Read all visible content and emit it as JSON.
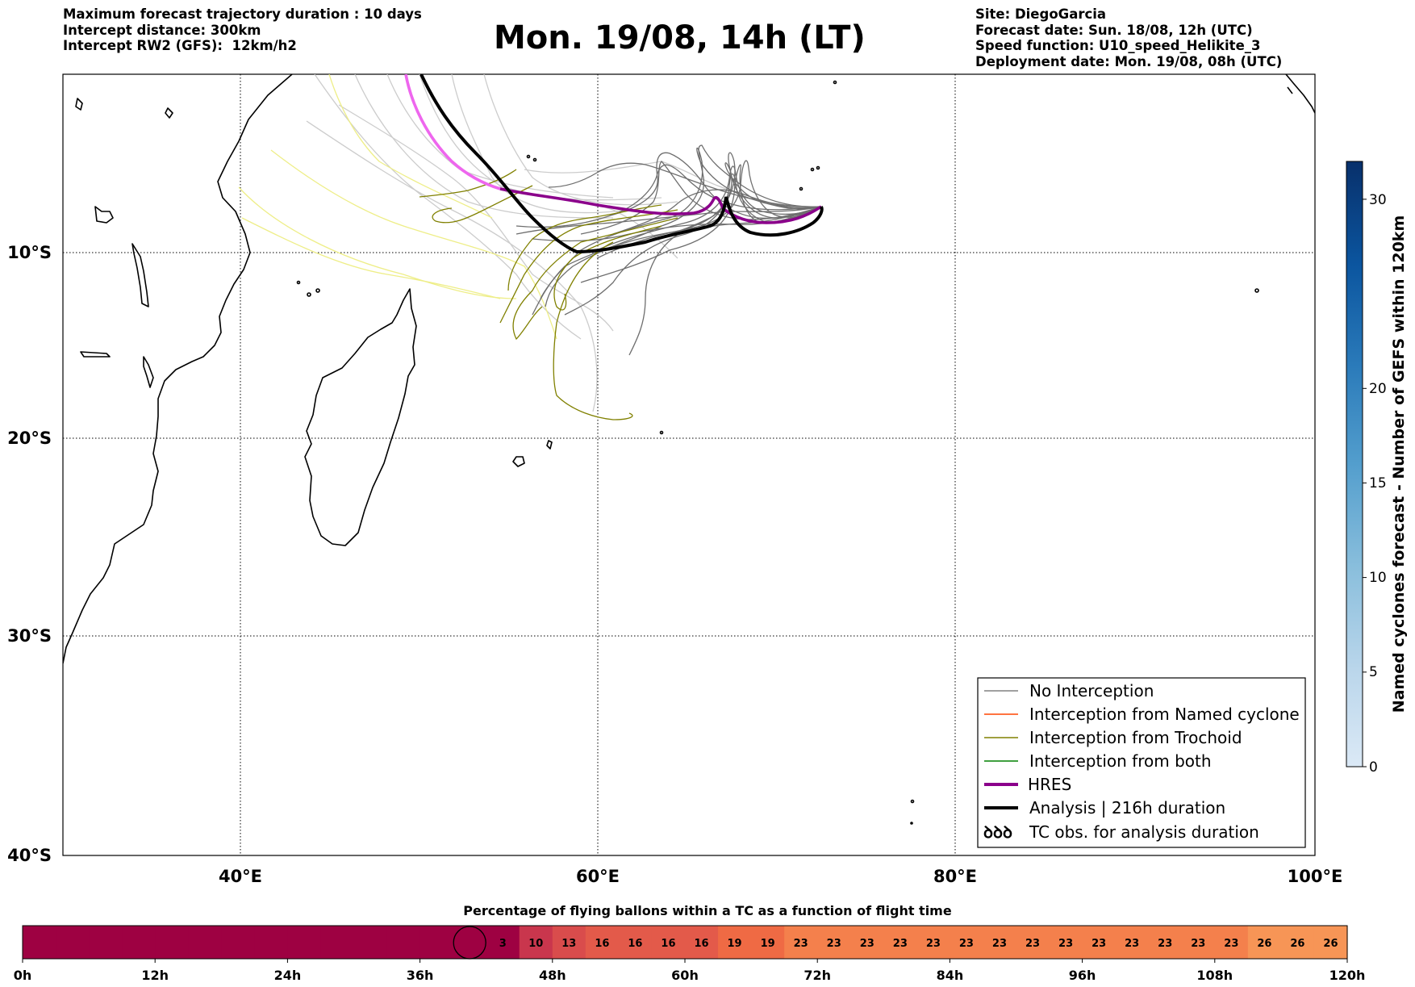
{
  "header_left": {
    "line1": "Maximum forecast trajectory duration : 10 days",
    "line2": "Intercept distance: 300km",
    "line3": "Intercept RW2 (GFS):  12km/h2"
  },
  "title": "Mon. 19/08, 14h (LT)",
  "header_right": {
    "line1": "Site: DiegoGarcia",
    "line2": "Forecast date: Sun. 18/08, 12h (UTC)",
    "line3": "Speed function: U10_speed_Helikite_3",
    "line4": "Deployment date: Mon. 19/08, 08h (UTC)"
  },
  "map": {
    "lon_range": [
      30,
      100
    ],
    "lat_range": [
      -40,
      0
    ],
    "lon_ticks": [
      "40°E",
      "60°E",
      "80°E",
      "100°E"
    ],
    "lat_ticks": [
      "10°S",
      "20°S",
      "30°S",
      "40°S"
    ],
    "grid": "dotted"
  },
  "legend": {
    "items": [
      {
        "label": "No Interception",
        "color": "#808080"
      },
      {
        "label": "Interception from Named cyclone",
        "color": "#ff4500"
      },
      {
        "label": "Interception from Trochoid",
        "color": "#808000"
      },
      {
        "label": "Interception from both",
        "color": "#008000"
      },
      {
        "label": "HRES",
        "color": "#8b008b"
      },
      {
        "label": "Analysis | 216h duration",
        "color": "#000000"
      },
      {
        "label": "TC obs. for analysis duration",
        "color": "#000000",
        "symbol": "ꝺꝺꝺ"
      }
    ]
  },
  "colorbar": {
    "label": "Named cyclones forecast - Number of GEFS within 120km",
    "range": [
      0,
      32
    ],
    "ticks": [
      "0",
      "5",
      "10",
      "15",
      "20",
      "30"
    ],
    "colors": [
      "#dbe9f6",
      "#bad6eb",
      "#89bedc",
      "#539ecd",
      "#2b7bba",
      "#0b559f",
      "#08306b"
    ]
  },
  "bottom_bar": {
    "title": "Percentage of flying ballons within a TC as a function of flight time",
    "time_ticks": [
      "0h",
      "12h",
      "24h",
      "36h",
      "48h",
      "60h",
      "72h",
      "84h",
      "96h",
      "108h",
      "120h"
    ],
    "values": [
      0,
      0,
      0,
      0,
      0,
      0,
      0,
      0,
      0,
      0,
      0,
      0,
      0,
      0,
      3,
      10,
      13,
      16,
      16,
      16,
      16,
      19,
      19,
      23,
      23,
      23,
      23,
      23,
      23,
      23,
      23,
      23,
      23,
      23,
      23,
      23,
      23,
      26,
      26,
      26
    ],
    "labels_from_index": 14,
    "circle_at_hour": 40.5
  },
  "trajectory_colors": {
    "no_interception": "#808080",
    "ensemble_light": "#cccccc",
    "yellow": "#eeee88",
    "trochoid": "#808000",
    "hres": "#8b008b",
    "hres_early": "#ee66ee",
    "analysis": "#000000"
  }
}
